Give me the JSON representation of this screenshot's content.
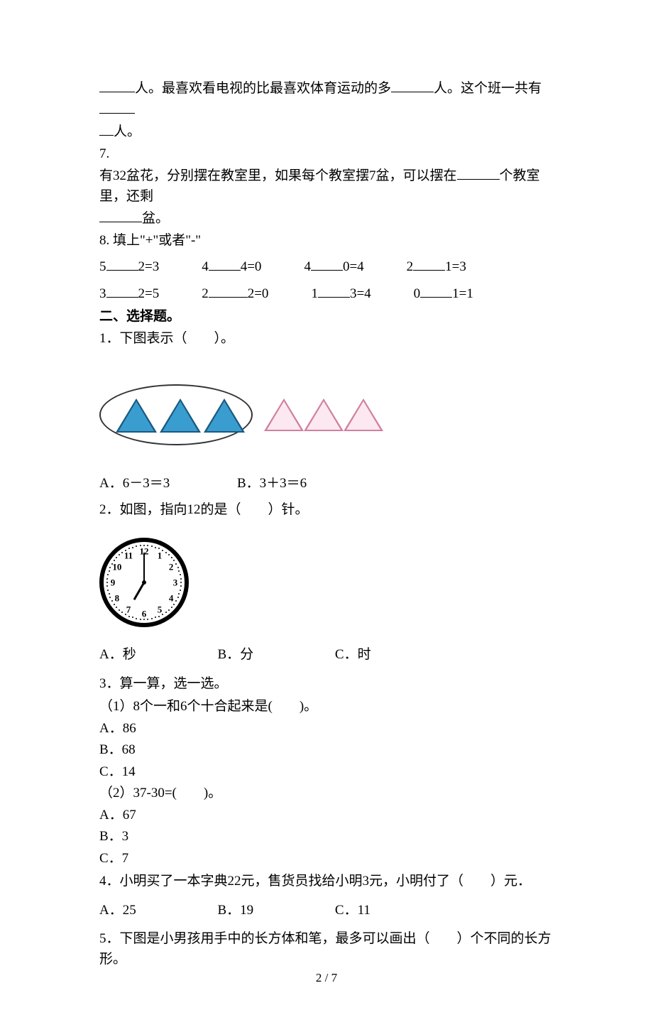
{
  "q6": {
    "part1": "人。最喜欢看电视的比最喜欢体育运动的多",
    "part2": "人。这个班一共有",
    "part3": "人。"
  },
  "q7": {
    "num": "7.",
    "text1": "有32盆花，分别摆在教室里，如果每个教室摆7盆，可以摆在",
    "text2": "个教室里，还剩",
    "text3": "盆。"
  },
  "q8": {
    "num": "8.",
    "title": "填上\"+\"或者\"-\"",
    "row1": [
      "5",
      "2=3",
      "4",
      "4=0",
      "4",
      "0=4",
      "2",
      "1=3"
    ],
    "row2": [
      "3",
      "2=5",
      "2",
      "2=0",
      "1",
      "3=4",
      "0",
      "1=1"
    ]
  },
  "section2": "二、选择题。",
  "s2q1": {
    "num": "1．",
    "text": "下图表示（　　）。",
    "optA": "A．6－3＝3",
    "optB": "B．3＋3＝6"
  },
  "s2q2": {
    "num": "2．",
    "text": "如图，指向12的是（　　）针。",
    "optA": "A．秒",
    "optB": "B．分",
    "optC": "C．时"
  },
  "s2q3": {
    "num": "3．",
    "text": "算一算，选一选。",
    "sub1": "（1）8个一和6个十合起来是(　　)。",
    "sub1A": "A．86",
    "sub1B": "B．68",
    "sub1C": "C．14",
    "sub2": "（2）37-30=(　　)。",
    "sub2A": "A．67",
    "sub2B": "B．3",
    "sub2C": "C．7"
  },
  "s2q4": {
    "num": "4．",
    "text": "小明买了一本字典22元，售货员找给小明3元，小明付了（　　）元．",
    "optA": "A．25",
    "optB": "B．19",
    "optC": "C．11"
  },
  "s2q5": {
    "num": "5．",
    "text": "下图是小男孩用手中的长方体和笔，最多可以画出（　　）个不同的长方形。"
  },
  "clock_numbers": [
    "12",
    "1",
    "2",
    "3",
    "4",
    "5",
    "6",
    "7",
    "8",
    "9",
    "10",
    "11"
  ],
  "pageNum": "2 / 7"
}
